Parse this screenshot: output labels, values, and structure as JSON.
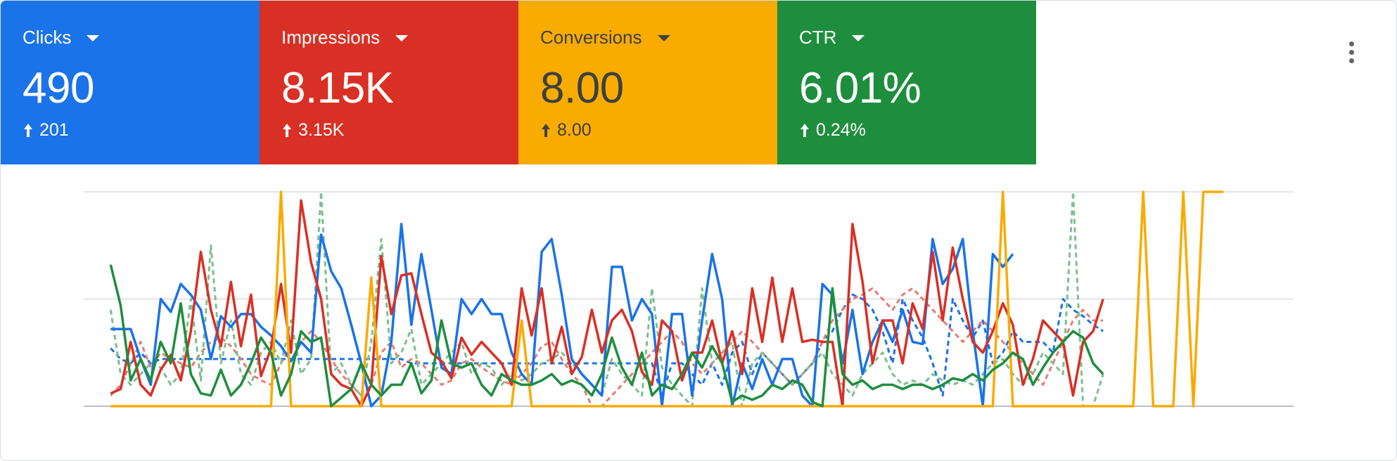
{
  "tiles": [
    {
      "label": "Clicks",
      "value": "490",
      "delta": "201",
      "bg": "#1a73e8",
      "text_color": "#ffffff"
    },
    {
      "label": "Impressions",
      "value": "8.15K",
      "delta": "3.15K",
      "bg": "#d93025",
      "text_color": "#ffffff"
    },
    {
      "label": "Conversions",
      "value": "8.00",
      "delta": "8.00",
      "bg": "#f9ab00",
      "text_color": "#3c4043"
    },
    {
      "label": "CTR",
      "value": "6.01%",
      "delta": "0.24%",
      "bg": "#1e8e3e",
      "text_color": "#ffffff"
    }
  ],
  "icons": {
    "tile_dropdown": "caret-down-icon",
    "delta": "arrow-up-icon",
    "menu": "more-vert-icon"
  },
  "chart_data": {
    "type": "line",
    "x_count": 120,
    "ylim": [
      0,
      1
    ],
    "grid": true,
    "series": [
      {
        "metric": "Clicks",
        "period": "current",
        "color": "#1a73e8",
        "style": "solid",
        "values": [
          0.36,
          0.36,
          0.36,
          0.22,
          0.1,
          0.5,
          0.44,
          0.57,
          0.52,
          0.45,
          0.22,
          0.42,
          0.37,
          0.43,
          0.43,
          0.37,
          0.33,
          0.28,
          0.21,
          0.3,
          0.25,
          0.8,
          0.63,
          0.55,
          0.38,
          0.2,
          0.0,
          0.05,
          0.3,
          0.85,
          0.38,
          0.71,
          0.45,
          0.18,
          0.15,
          0.5,
          0.43,
          0.5,
          0.43,
          0.43,
          0.25,
          0.15,
          0.1,
          0.72,
          0.78,
          0.52,
          0.22,
          0.15,
          0.1,
          0.05,
          0.65,
          0.65,
          0.4,
          0.5,
          0.43,
          0.0,
          0.43,
          0.43,
          0.05,
          0.4,
          0.71,
          0.5,
          0.0,
          0.2,
          0.08,
          0.22,
          0.1,
          0.22,
          0.22,
          0.05,
          0.0,
          0.57,
          0.52,
          0.2,
          0.45,
          0.15,
          0.3,
          0.4,
          0.3,
          0.45,
          0.3,
          0.29,
          0.78,
          0.57,
          0.64,
          0.78,
          0.35,
          0.0,
          0.71,
          0.65,
          0.71
        ],
        "x_from": 1
      },
      {
        "metric": "Impressions",
        "period": "current",
        "color": "#d93025",
        "style": "solid",
        "values": [
          0.06,
          0.08,
          0.3,
          0.1,
          0.05,
          0.17,
          0.24,
          0.12,
          0.35,
          0.72,
          0.45,
          0.28,
          0.58,
          0.28,
          0.52,
          0.14,
          0.27,
          0.57,
          0.25,
          0.96,
          0.67,
          0.5,
          0.15,
          0.1,
          0.08,
          0.0,
          0.1,
          0.7,
          0.43,
          0.61,
          0.62,
          0.43,
          0.25,
          0.21,
          0.13,
          0.32,
          0.24,
          0.3,
          0.25,
          0.2,
          0.1,
          0.55,
          0.33,
          0.55,
          0.2,
          0.37,
          0.15,
          0.23,
          0.45,
          0.25,
          0.4,
          0.45,
          0.35,
          0.16,
          0.1,
          0.4,
          0.35,
          0.12,
          0.25,
          0.25,
          0.4,
          0.2,
          0.35,
          0.15,
          0.55,
          0.3,
          0.6,
          0.3,
          0.55,
          0.3,
          0.31,
          0.3,
          0.3,
          0.0,
          0.85,
          0.58,
          0.2,
          0.4,
          0.4,
          0.2,
          0.48,
          0.36,
          0.72,
          0.4,
          0.74,
          0.5,
          0.3,
          0.25,
          0.35,
          0.48,
          0.38,
          0.1,
          0.22,
          0.4,
          0.35,
          0.3,
          0.05,
          0.3,
          0.35,
          0.5
        ],
        "x_from": 1
      },
      {
        "metric": "Conversions",
        "period": "current",
        "color": "#f9ab00",
        "style": "solid",
        "values": [
          0,
          0,
          0,
          0,
          0,
          0,
          0,
          0,
          0,
          0,
          0,
          0,
          0,
          0,
          0,
          0,
          0,
          1,
          0,
          0,
          0,
          0,
          0,
          0,
          0,
          0,
          0.6,
          0,
          0,
          0,
          0,
          0,
          0,
          0,
          0,
          0,
          0,
          0,
          0,
          0,
          0,
          0.4,
          0,
          0,
          0,
          0,
          0,
          0,
          0,
          0,
          0,
          0,
          0,
          0,
          0,
          0,
          0,
          0,
          0,
          0,
          0,
          0,
          0,
          0,
          0,
          0,
          0,
          0,
          0,
          0,
          0,
          0,
          0,
          0,
          0,
          0,
          0,
          0,
          0,
          0,
          0,
          0,
          0,
          0,
          0,
          0,
          0,
          0,
          0,
          1,
          0,
          0,
          0,
          0,
          0,
          0,
          0,
          0,
          0,
          0,
          0,
          0,
          0,
          1,
          0,
          0,
          0,
          1,
          0,
          1,
          1,
          1
        ],
        "x_from": 1
      },
      {
        "metric": "CTR",
        "period": "current",
        "color": "#1e8e3e",
        "style": "solid",
        "values": [
          0.66,
          0.47,
          0.12,
          0.22,
          0.12,
          0.3,
          0.2,
          0.48,
          0.15,
          0.06,
          0.05,
          0.17,
          0.05,
          0.1,
          0.2,
          0.32,
          0.25,
          0.05,
          0.15,
          0.35,
          0.3,
          0.32,
          0.0,
          0.04,
          0.08,
          0.2,
          0.1,
          0.05,
          0.1,
          0.1,
          0.2,
          0.06,
          0.12,
          0.4,
          0.2,
          0.18,
          0.2,
          0.1,
          0.05,
          0.15,
          0.12,
          0.1,
          0.1,
          0.12,
          0.15,
          0.1,
          0.12,
          0.1,
          0.05,
          0.15,
          0.32,
          0.18,
          0.1,
          0.25,
          0.05,
          0.1,
          0.08,
          0.15,
          0.25,
          0.18,
          0.28,
          0.2,
          0.02,
          0.05,
          0.03,
          0.05,
          0.1,
          0.08,
          0.12,
          0.1,
          0.02,
          0.0,
          0.55,
          0.15,
          0.1,
          0.12,
          0.08,
          0.1,
          0.1,
          0.08,
          0.1,
          0.1,
          0.08,
          0.1,
          0.13,
          0.12,
          0.15,
          0.12,
          0.17,
          0.2,
          0.25,
          0.22,
          0.1,
          0.18,
          0.25,
          0.3,
          0.35,
          0.32,
          0.2,
          0.15
        ],
        "x_from": 1
      },
      {
        "metric": "Clicks",
        "period": "previous",
        "color": "#1a73e8",
        "style": "dashed",
        "values": [
          0.27,
          0.22,
          0.2,
          0.25,
          0.2,
          0.22,
          0.22,
          0.22,
          0.22,
          0.22,
          0.22,
          0.22,
          0.22,
          0.22,
          0.22,
          0.22,
          0.22,
          0.22,
          0.22,
          0.22,
          0.22,
          0.22,
          0.22,
          0.22,
          0.22,
          0.22,
          0.22,
          0.22,
          0.22,
          0.22,
          0.2,
          0.2,
          0.2,
          0.2,
          0.2,
          0.2,
          0.2,
          0.2,
          0.2,
          0.2,
          0.2,
          0.2,
          0.2,
          0.2,
          0.2,
          0.2,
          0.2,
          0.2,
          0.2,
          0.2,
          0.2,
          0.2,
          0.2,
          0.2,
          0.2,
          0.05,
          0.2,
          0.2,
          0.15,
          0.1,
          0.2,
          0.1,
          0.25,
          0.3,
          0.15,
          0.25,
          0.2,
          0.15,
          0.1,
          0.15,
          0.2,
          0.3,
          0.35,
          0.45,
          0.52,
          0.5,
          0.45,
          0.35,
          0.2,
          0.5,
          0.4,
          0.32,
          0.2,
          0.05,
          0.5,
          0.4,
          0.32,
          0.4,
          0.2,
          0.25,
          0.35,
          0.3,
          0.3,
          0.3,
          0.25,
          0.5,
          0.45,
          0.42,
          0.38,
          0.35
        ],
        "x_from": 1
      },
      {
        "metric": "Impressions",
        "period": "previous",
        "color": "#e67c73",
        "style": "dashed",
        "values": [
          0.05,
          0.1,
          0.2,
          0.3,
          0.18,
          0.25,
          0.22,
          0.2,
          0.18,
          0.25,
          0.3,
          0.32,
          0.28,
          0.22,
          0.15,
          0.12,
          0.1,
          0.2,
          0.28,
          0.3,
          0.35,
          0.3,
          0.22,
          0.15,
          0.1,
          0.05,
          0.1,
          0.25,
          0.3,
          0.18,
          0.22,
          0.2,
          0.15,
          0.1,
          0.12,
          0.2,
          0.22,
          0.18,
          0.15,
          0.12,
          0.1,
          0.15,
          0.2,
          0.28,
          0.3,
          0.22,
          0.15,
          0.1,
          0.0,
          0.0,
          0.05,
          0.1,
          0.15,
          0.2,
          0.25,
          0.3,
          0.35,
          0.3,
          0.2,
          0.15,
          0.2,
          0.25,
          0.3,
          0.35,
          0.3,
          0.25,
          0.2,
          0.15,
          0.1,
          0.15,
          0.2,
          0.3,
          0.4,
          0.45,
          0.5,
          0.52,
          0.55,
          0.5,
          0.45,
          0.52,
          0.55,
          0.5,
          0.45,
          0.4,
          0.35,
          0.3,
          0.35,
          0.4,
          0.35,
          0.3,
          0.25,
          0.2,
          0.15,
          0.1,
          0.2,
          0.3,
          0.4,
          0.45,
          0.4,
          0.4
        ],
        "x_from": 1
      },
      {
        "metric": "CTR",
        "period": "previous",
        "color": "#7cbf8f",
        "style": "dashed",
        "values": [
          0.45,
          0.15,
          0.1,
          0.15,
          0.2,
          0.18,
          0.1,
          0.15,
          0.5,
          0.12,
          0.75,
          0.2,
          0.4,
          0.15,
          0.1,
          0.25,
          0.3,
          0.2,
          0.4,
          0.15,
          0.22,
          1.0,
          0.15,
          0.2,
          0.1,
          0.05,
          0.3,
          0.78,
          0.2,
          0.25,
          0.36,
          0.1,
          0.15,
          0.2,
          0.25,
          0.3,
          0.15,
          0.2,
          0.18,
          0.1,
          0.15,
          0.12,
          0.15,
          0.2,
          0.22,
          0.25,
          0.2,
          0.15,
          0.1,
          0.05,
          0.22,
          0.15,
          0.1,
          0.05,
          0.55,
          0.18,
          0.1,
          0.05,
          0.0,
          0.55,
          0.2,
          0.25,
          0.3,
          0.0,
          0.2,
          0.25,
          0.2,
          0.15,
          0.1,
          0.15,
          0.2,
          0.25,
          0.15,
          0.1,
          0.05,
          0.15,
          0.2,
          0.25,
          0.15,
          0.1,
          0.12,
          0.1,
          0.15,
          0.12,
          0.1,
          0.12,
          0.1,
          0.15,
          0.2,
          0.22,
          0.15,
          0.1,
          0.15,
          0.25,
          0.2,
          0.15,
          1.0,
          0.0,
          0.0,
          0.15
        ],
        "x_from": 1
      }
    ]
  }
}
